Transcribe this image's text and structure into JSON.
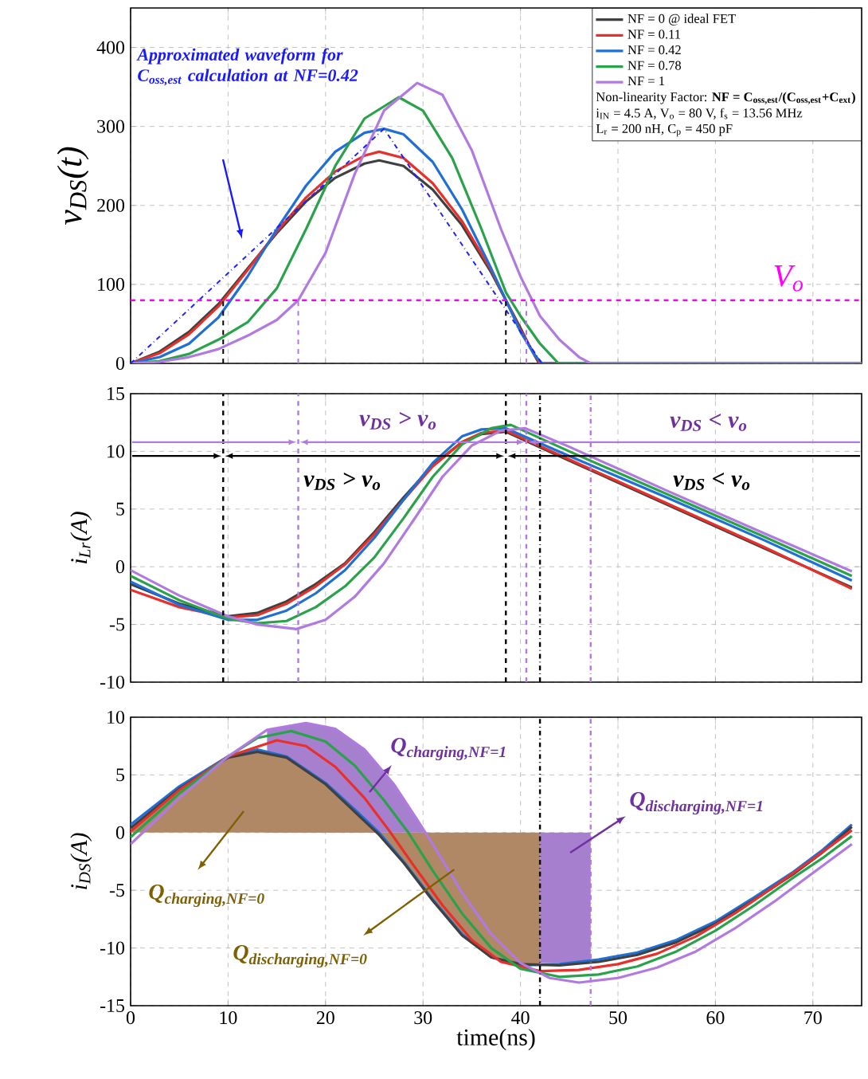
{
  "chart_data": [
    {
      "type": "line",
      "ylabel": "v$_{DS}$(t)",
      "xlim": [
        0,
        75
      ],
      "ylim": [
        0,
        450
      ],
      "xticks": [
        0,
        10,
        20,
        30,
        40,
        50,
        60,
        70
      ],
      "yticks": [
        0,
        100,
        200,
        300,
        400
      ],
      "tick_labels": "y",
      "grid": true,
      "legend": "top right",
      "annotations": [
        "Approximated waveform for C$_{oss,est}$ calculation at NF=0.42",
        "Non-linearity Factor: **NF = C$_{oss,est}$/(C$_{oss,est}$+C$_{ext}$)**",
        "i$_{IN}$ = 4.5 A, V$_{o}$ = 80 V, f$_{s}$ = 13.56 MHz",
        "L$_{r}$ = 200 nH, C$_{p}$ = 450 pF"
      ],
      "ref_lines": [
        {
          "axis": "y",
          "value": 80,
          "label": "V$_{o}$",
          "color": "#ff00ff",
          "line_style": "dashed"
        }
      ],
      "series": [
        {
          "name": "NF = 0 @ ideal FET",
          "color": "#404040",
          "x": [
            0,
            3,
            6,
            9,
            12,
            15,
            18,
            21,
            24,
            25.5,
            28,
            31,
            34,
            37,
            38.5,
            40,
            41,
            41.9,
            75
          ],
          "values": [
            0,
            15,
            40,
            75,
            120,
            165,
            205,
            235,
            253,
            257,
            250,
            220,
            175,
            115,
            80,
            45,
            20,
            0,
            0
          ]
        },
        {
          "name": "NF = 0.11",
          "color": "#e8302a",
          "x": [
            0,
            3,
            6,
            9,
            12,
            15,
            18,
            21,
            24,
            25.5,
            28,
            31,
            34,
            37,
            38.5,
            40,
            41.5,
            42,
            75
          ],
          "values": [
            0,
            13,
            37,
            72,
            118,
            167,
            210,
            243,
            263,
            268,
            260,
            228,
            180,
            118,
            80,
            42,
            10,
            0,
            0
          ]
        },
        {
          "name": "NF = 0.42",
          "color": "#1f6fd6",
          "x": [
            0,
            3,
            6,
            9,
            12,
            15,
            18,
            21,
            24,
            26,
            28,
            31,
            34,
            37,
            38.5,
            40,
            41.5,
            42.2,
            75
          ],
          "values": [
            0,
            8,
            25,
            58,
            110,
            170,
            225,
            268,
            292,
            297,
            290,
            255,
            195,
            120,
            80,
            40,
            10,
            0,
            0
          ]
        },
        {
          "name": "NF = 0.78",
          "color": "#2aa24a",
          "x": [
            0,
            3,
            6,
            9,
            12,
            15,
            18,
            21,
            24,
            27.5,
            30,
            33,
            36,
            38.5,
            40,
            42,
            43.9,
            75
          ],
          "values": [
            0,
            3,
            12,
            30,
            52,
            95,
            170,
            250,
            310,
            337,
            320,
            260,
            170,
            90,
            60,
            25,
            0,
            0
          ]
        },
        {
          "name": "NF = 1",
          "color": "#b07ae0",
          "x": [
            0,
            3,
            6,
            9,
            12,
            15,
            17.2,
            20,
            23,
            26,
            29.4,
            32,
            35,
            38,
            40,
            42,
            44,
            46,
            47.2,
            75
          ],
          "values": [
            0,
            2,
            8,
            18,
            35,
            55,
            80,
            140,
            240,
            320,
            355,
            340,
            270,
            170,
            110,
            60,
            30,
            8,
            0,
            0
          ]
        },
        {
          "color": "#2020ff",
          "line_style": "dotted",
          "x": [
            0,
            26,
            42.2
          ],
          "values": [
            0,
            297,
            0
          ]
        },
        {
          "color": "#000000",
          "line_style": "dashed",
          "x": [
            9.5,
            9.5
          ],
          "values": [
            0,
            80
          ]
        },
        {
          "color": "#000000",
          "line_style": "dashed",
          "x": [
            38.5,
            38.5
          ],
          "values": [
            0,
            80
          ]
        },
        {
          "color": "#b07ae0",
          "line_style": "dashed",
          "x": [
            17.2,
            17.2
          ],
          "values": [
            0,
            80
          ]
        },
        {
          "color": "#b07ae0",
          "line_style": "dashed",
          "x": [
            40.6,
            40.6
          ],
          "values": [
            0,
            80
          ]
        }
      ]
    },
    {
      "type": "line",
      "ylabel": "i$_{Lr}$(A)",
      "xlim": [
        0,
        75
      ],
      "ylim": [
        -10,
        15
      ],
      "xticks": [
        0,
        10,
        20,
        30,
        40,
        50,
        60,
        70
      ],
      "yticks": [
        -10,
        -5,
        0,
        5,
        10,
        15
      ],
      "tick_labels": "y",
      "grid": true,
      "annotations": [
        "v$_{DS}$ > v$_{o}$",
        "v$_{DS}$ < v$_{o}$",
        "v$_{DS}$ > v$_{o}$",
        "v$_{DS}$ < v$_{o}$"
      ],
      "ref_lines": [
        {
          "axis": "x",
          "value": 9.5,
          "color": "#000000",
          "line_style": "dashed"
        },
        {
          "axis": "x",
          "value": 38.5,
          "color": "#000000",
          "line_style": "dashed"
        },
        {
          "axis": "x",
          "value": 17.2,
          "color": "#b07ae0",
          "line_style": "dashed"
        },
        {
          "axis": "x",
          "value": 40.6,
          "color": "#b07ae0",
          "line_style": "dashed"
        },
        {
          "axis": "x",
          "value": 42,
          "color": "#000000",
          "line_style": "dotted"
        },
        {
          "axis": "x",
          "value": 47.2,
          "color": "#b07ae0",
          "line_style": "dotted"
        }
      ],
      "series": [
        {
          "color": "#404040",
          "x": [
            0,
            5,
            10,
            13,
            16,
            19,
            22,
            25,
            28,
            31,
            34,
            36,
            38.5,
            45,
            55,
            65,
            74
          ],
          "values": [
            -1.5,
            -3.2,
            -4.3,
            -4.0,
            -3.0,
            -1.5,
            0.3,
            3.0,
            6.0,
            8.8,
            10.8,
            11.5,
            11.7,
            9.2,
            5.4,
            1.6,
            -1.8
          ]
        },
        {
          "color": "#e8302a",
          "x": [
            0,
            5,
            10,
            13,
            16,
            19,
            22,
            25,
            28,
            31,
            34,
            36,
            38.5,
            45,
            55,
            65,
            74
          ],
          "values": [
            -2.0,
            -3.5,
            -4.4,
            -4.2,
            -3.2,
            -1.7,
            0.2,
            2.8,
            5.8,
            8.7,
            10.8,
            11.6,
            11.8,
            9.3,
            5.5,
            1.7,
            -1.9
          ]
        },
        {
          "color": "#1f6fd6",
          "x": [
            0,
            5,
            10,
            13,
            16,
            19,
            22,
            25,
            28,
            31,
            34,
            36,
            38.5,
            45,
            55,
            65,
            74
          ],
          "values": [
            -1.3,
            -3.3,
            -4.6,
            -4.6,
            -3.8,
            -2.3,
            -0.3,
            2.5,
            5.8,
            9.0,
            11.3,
            11.9,
            12.0,
            9.6,
            6.0,
            2.3,
            -1.2
          ]
        },
        {
          "color": "#2aa24a",
          "x": [
            0,
            5,
            10,
            13,
            16,
            19,
            22,
            25,
            28,
            31,
            34,
            37,
            39,
            45,
            55,
            65,
            74
          ],
          "values": [
            -0.8,
            -2.9,
            -4.5,
            -4.9,
            -4.7,
            -3.5,
            -1.7,
            0.8,
            4.2,
            7.8,
            10.6,
            12.0,
            12.3,
            10.0,
            6.3,
            2.6,
            -0.8
          ]
        },
        {
          "color": "#b07ae0",
          "x": [
            0,
            5,
            10,
            13,
            17,
            20,
            23,
            26,
            29,
            32,
            35,
            38,
            40.5,
            45,
            55,
            65,
            74
          ],
          "values": [
            -0.3,
            -2.5,
            -4.3,
            -5.0,
            -5.4,
            -4.6,
            -2.6,
            0.3,
            4.0,
            7.8,
            10.5,
            11.8,
            12.0,
            10.4,
            6.6,
            2.9,
            -0.4
          ]
        }
      ]
    },
    {
      "type": "line",
      "xlabel": "time(ns)",
      "ylabel": "i$_{DS}$(A)",
      "xlim": [
        0,
        75
      ],
      "ylim": [
        -15,
        10
      ],
      "xticks": [
        0,
        10,
        20,
        30,
        40,
        50,
        60,
        70
      ],
      "yticks": [
        -15,
        -10,
        -5,
        0,
        5,
        10
      ],
      "grid": true,
      "annotations": [
        "\\text{\\bfseries\\itshape Q}_{\\text{\\bfseries\\itshape charging,NF=1}}",
        "\\text{\\bfseries\\itshape Q}_{\\text{\\bfseries\\itshape discharging,NF=1}}",
        "\\text{\\bfseries\\itshape Q}_{\\text{\\bfseries\\itshape charging,NF=0}}",
        {
          "text": "\\text{\\bfseries\\itshape Q}_{\\text{\\bfseries\\itshape discharging,NF=0}}",
          "x": 33.2,
          "y": -3.2
        }
      ],
      "ref_lines": [
        {
          "axis": "x",
          "value": 42,
          "color": "#000000",
          "line_style": "dotted"
        },
        {
          "axis": "x",
          "value": 47.2,
          "color": "#b07ae0",
          "line_style": "dotted"
        }
      ],
      "series": [
        {
          "type": "area",
          "color": "#a67fce",
          "x": [
            14,
            18,
            21,
            24,
            27,
            29.5,
            30.3
          ],
          "values": [
            8.9,
            9.5,
            9.0,
            7.2,
            4.2,
            1.0,
            0
          ]
        },
        {
          "type": "area",
          "color": "#a67fce",
          "x": [
            42,
            47.2
          ],
          "values": [
            -11.3,
            -11.3
          ]
        },
        {
          "type": "area",
          "color": "#b08866",
          "x": [
            0,
            5,
            10,
            13,
            16,
            20,
            23,
            25.5,
            28,
            31,
            34,
            37,
            40,
            42
          ],
          "values": [
            0.4,
            3.8,
            6.5,
            7.0,
            6.5,
            4.2,
            1.8,
            -0.2,
            -2.6,
            -5.9,
            -8.9,
            -10.8,
            -11.4,
            -11.5
          ]
        },
        {
          "color": "#1f6fd6",
          "x": [
            0,
            5,
            10,
            13,
            16,
            20,
            23,
            25.5,
            28,
            31,
            34,
            37,
            40,
            44,
            48,
            52,
            56,
            60,
            64,
            68,
            71,
            74
          ],
          "values": [
            0.7,
            4.0,
            6.6,
            7.2,
            6.6,
            4.3,
            2.0,
            0,
            -2.5,
            -5.8,
            -8.8,
            -10.8,
            -11.5,
            -11.4,
            -11.0,
            -10.4,
            -9.3,
            -7.7,
            -5.6,
            -3.4,
            -1.5,
            0.7
          ]
        },
        {
          "color": "#404040",
          "x": [
            0,
            5,
            10,
            13,
            16,
            20,
            23,
            25.5,
            28,
            31,
            34,
            37,
            40,
            44,
            48,
            52,
            56,
            60,
            64,
            68,
            71,
            74
          ],
          "values": [
            0.4,
            3.8,
            6.5,
            7.0,
            6.5,
            4.2,
            1.8,
            -0.2,
            -2.6,
            -5.9,
            -8.9,
            -10.8,
            -11.4,
            -11.5,
            -11.2,
            -10.6,
            -9.5,
            -7.9,
            -5.8,
            -3.6,
            -1.7,
            0.5
          ]
        },
        {
          "color": "#e8302a",
          "x": [
            0,
            5,
            10,
            15,
            18,
            21,
            24,
            26.5,
            29,
            32,
            35,
            38,
            42,
            46,
            50,
            54,
            58,
            62,
            66,
            70,
            74
          ],
          "values": [
            0.1,
            3.7,
            6.6,
            8.0,
            7.5,
            5.7,
            3.0,
            0.2,
            -2.8,
            -6.3,
            -9.3,
            -11.2,
            -12.0,
            -11.9,
            -11.4,
            -10.5,
            -9.0,
            -7.0,
            -4.7,
            -2.3,
            0.2
          ]
        },
        {
          "color": "#2aa24a",
          "x": [
            0,
            5,
            10,
            13,
            16.5,
            20,
            23,
            26,
            28.5,
            31,
            34,
            37,
            40,
            44,
            48,
            52,
            56,
            60,
            64,
            68,
            71,
            74
          ],
          "values": [
            -0.4,
            3.4,
            6.6,
            8.2,
            8.8,
            7.9,
            5.8,
            2.8,
            0,
            -3.3,
            -7.0,
            -10.0,
            -11.8,
            -12.5,
            -12.3,
            -11.6,
            -10.3,
            -8.5,
            -6.3,
            -3.9,
            -2.2,
            -0.3
          ]
        },
        {
          "color": "#b07ae0",
          "x": [
            0,
            5,
            10,
            14,
            18,
            21,
            24,
            27,
            29.5,
            31,
            34,
            37,
            40,
            43,
            46,
            50,
            54,
            58,
            62,
            66,
            70,
            74
          ],
          "values": [
            -1.0,
            3.0,
            6.6,
            8.9,
            9.5,
            9.0,
            7.2,
            4.2,
            1.0,
            -1.0,
            -5.2,
            -8.8,
            -11.3,
            -12.6,
            -13.0,
            -12.6,
            -11.7,
            -10.3,
            -8.3,
            -6.0,
            -3.5,
            -1.0
          ]
        }
      ]
    }
  ]
}
